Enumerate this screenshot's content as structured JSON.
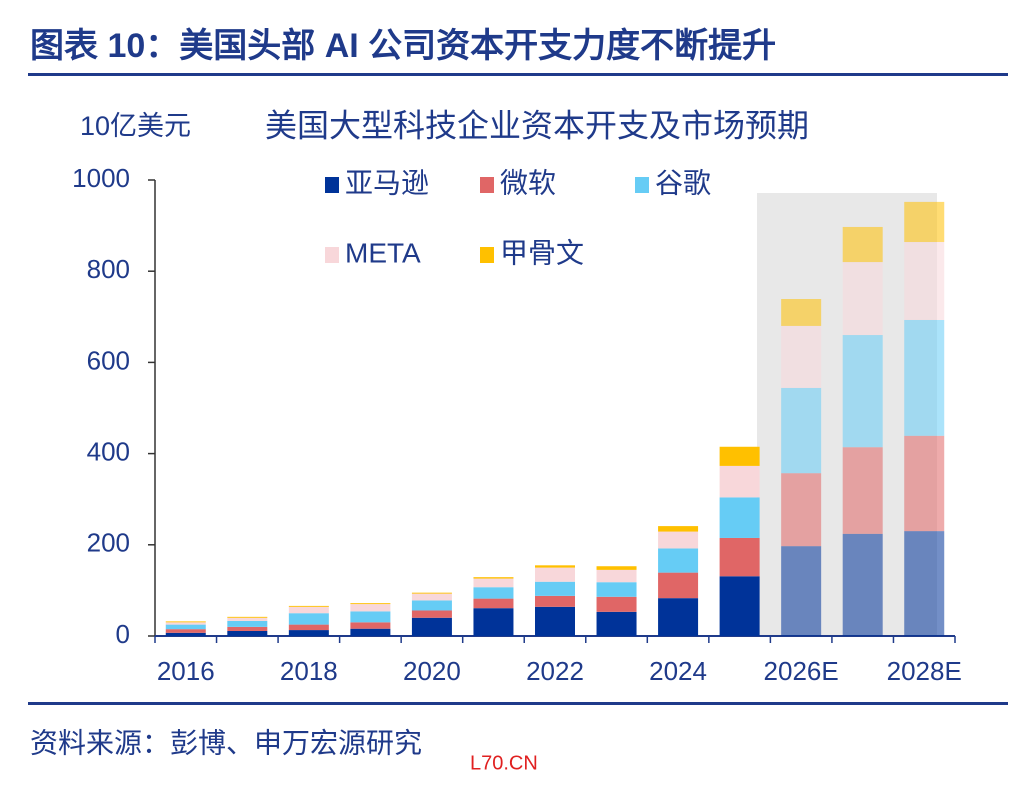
{
  "header": {
    "title": "图表 10：美国头部 AI 公司资本开支力度不断提升"
  },
  "chart_data": {
    "type": "stacked-bar",
    "title": "美国大型科技企业资本开支及市场预期",
    "y_label": "10亿美元",
    "categories": [
      "2016",
      null,
      "2018",
      null,
      "2020",
      null,
      "2022",
      null,
      "2024",
      null,
      "2026E",
      null,
      "2028E"
    ],
    "series": [
      {
        "name": "亚马逊",
        "color": "#003399",
        "values": [
          7,
          11,
          13,
          16,
          40,
          61,
          64,
          53,
          83,
          131,
          197,
          224,
          230
        ]
      },
      {
        "name": "微软",
        "color": "#e06666",
        "values": [
          8,
          9,
          12,
          14,
          16,
          21,
          24,
          33,
          56,
          84,
          160,
          190,
          209
        ]
      },
      {
        "name": "谷歌",
        "color": "#66ccf5",
        "values": [
          10,
          13,
          25,
          24,
          22,
          25,
          31,
          32,
          53,
          89,
          187,
          246,
          254
        ]
      },
      {
        "name": "META",
        "color": "#f8d7da",
        "values": [
          5,
          7,
          14,
          16,
          15,
          19,
          31,
          27,
          37,
          69,
          136,
          160,
          171
        ]
      },
      {
        "name": "甲骨文",
        "color": "#ffc000",
        "values": [
          2,
          2,
          2,
          2,
          2,
          3,
          5,
          8,
          12,
          42,
          59,
          77,
          88
        ]
      }
    ],
    "ylim": [
      0,
      1000
    ],
    "yticks": [
      0,
      200,
      400,
      600,
      800,
      1000
    ],
    "grid": false
  },
  "footer": {
    "source": "资料来源：彭博、申万宏源研究",
    "watermark": "L70.CN"
  }
}
